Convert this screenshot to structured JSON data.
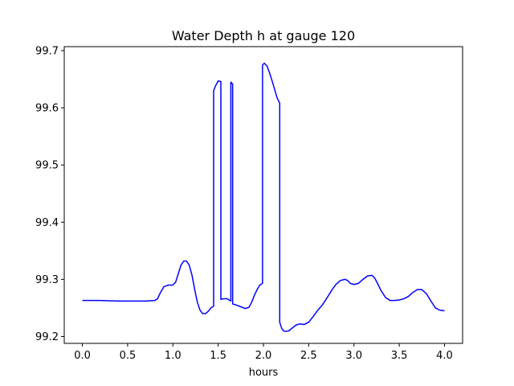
{
  "chart_data": {
    "type": "line",
    "title": "Water Depth h at gauge 120",
    "xlabel": "hours",
    "ylabel": "",
    "xlim": [
      -0.2,
      4.2
    ],
    "ylim": [
      99.188,
      99.707
    ],
    "xticks": [
      0.0,
      0.5,
      1.0,
      1.5,
      2.0,
      2.5,
      3.0,
      3.5,
      4.0
    ],
    "xtick_labels": [
      "0.0",
      "0.5",
      "1.0",
      "1.5",
      "2.0",
      "2.5",
      "3.0",
      "3.5",
      "4.0"
    ],
    "yticks": [
      99.2,
      99.3,
      99.4,
      99.5,
      99.6,
      99.7
    ],
    "ytick_labels": [
      "99.2",
      "99.3",
      "99.4",
      "99.5",
      "99.6",
      "99.7"
    ],
    "grid": false,
    "series": [
      {
        "color": "#0000ff",
        "x": [
          0.0,
          0.2,
          0.4,
          0.6,
          0.7,
          0.8,
          0.83,
          0.86,
          0.9,
          0.95,
          1.0,
          1.03,
          1.06,
          1.09,
          1.12,
          1.15,
          1.18,
          1.21,
          1.24,
          1.27,
          1.3,
          1.33,
          1.36,
          1.39,
          1.42,
          1.45,
          1.45,
          1.47,
          1.5,
          1.53,
          1.53,
          1.56,
          1.6,
          1.64,
          1.64,
          1.655,
          1.66,
          1.66,
          1.7,
          1.75,
          1.8,
          1.84,
          1.87,
          1.9,
          1.93,
          1.96,
          1.99,
          1.99,
          2.01,
          2.04,
          2.07,
          2.1,
          2.15,
          2.18,
          2.18,
          2.2,
          2.22,
          2.25,
          2.28,
          2.32,
          2.36,
          2.4,
          2.45,
          2.5,
          2.55,
          2.6,
          2.65,
          2.7,
          2.75,
          2.8,
          2.85,
          2.9,
          2.93,
          2.96,
          3.0,
          3.05,
          3.1,
          3.15,
          3.2,
          3.23,
          3.26,
          3.3,
          3.35,
          3.4,
          3.45,
          3.5,
          3.55,
          3.6,
          3.65,
          3.7,
          3.75,
          3.8,
          3.85,
          3.9,
          3.95,
          4.0
        ],
        "y": [
          99.263,
          99.263,
          99.262,
          99.262,
          99.262,
          99.263,
          99.266,
          99.276,
          99.287,
          99.29,
          99.29,
          99.295,
          99.31,
          99.325,
          99.332,
          99.332,
          99.325,
          99.308,
          99.283,
          99.26,
          99.246,
          99.24,
          99.24,
          99.244,
          99.25,
          99.253,
          99.63,
          99.638,
          99.647,
          99.646,
          99.265,
          99.266,
          99.266,
          99.262,
          99.645,
          99.642,
          99.642,
          99.257,
          99.255,
          99.252,
          99.249,
          99.251,
          99.26,
          99.272,
          99.282,
          99.29,
          99.293,
          99.675,
          99.678,
          99.673,
          99.66,
          99.645,
          99.618,
          99.608,
          99.225,
          99.215,
          99.21,
          99.209,
          99.21,
          99.215,
          99.22,
          99.222,
          99.221,
          99.225,
          99.235,
          99.246,
          99.255,
          99.267,
          99.28,
          99.291,
          99.298,
          99.3,
          99.298,
          99.293,
          99.291,
          99.293,
          99.3,
          99.306,
          99.307,
          99.302,
          99.293,
          99.28,
          99.268,
          99.263,
          99.263,
          99.264,
          99.266,
          99.27,
          99.277,
          99.282,
          99.282,
          99.275,
          99.262,
          99.25,
          99.246,
          99.245
        ]
      }
    ]
  }
}
